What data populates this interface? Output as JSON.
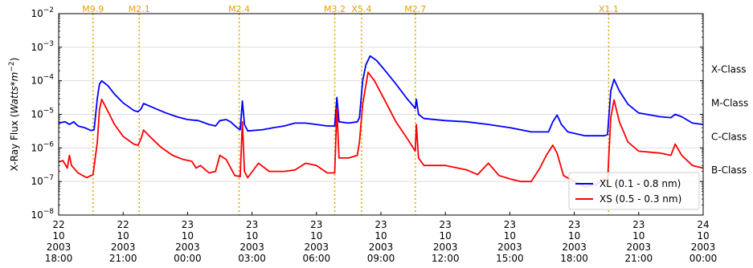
{
  "chart_data": {
    "type": "line",
    "ylabel": "X-Ray Flux (Watts*m^-2)",
    "yscale": "log",
    "ylim": [
      1e-08,
      0.01
    ],
    "y_ticks": [
      {
        "value": 1e-08,
        "mant": "10",
        "exp": "−8"
      },
      {
        "value": 1e-07,
        "mant": "10",
        "exp": "−7"
      },
      {
        "value": 1e-06,
        "mant": "10",
        "exp": "−6"
      },
      {
        "value": 1e-05,
        "mant": "10",
        "exp": "−5"
      },
      {
        "value": 0.0001,
        "mant": "10",
        "exp": "−4"
      },
      {
        "value": 0.001,
        "mant": "10",
        "exp": "−3"
      },
      {
        "value": 0.01,
        "mant": "10",
        "exp": "−2"
      }
    ],
    "xlim_hours": [
      0,
      30
    ],
    "x_ticks": [
      {
        "hours": 0,
        "lines": [
          "22",
          "10",
          "2003",
          "18:00"
        ]
      },
      {
        "hours": 3,
        "lines": [
          "22",
          "10",
          "2003",
          "21:00"
        ]
      },
      {
        "hours": 6,
        "lines": [
          "23",
          "10",
          "2003",
          "00:00"
        ]
      },
      {
        "hours": 9,
        "lines": [
          "23",
          "10",
          "2003",
          "03:00"
        ]
      },
      {
        "hours": 12,
        "lines": [
          "23",
          "10",
          "2003",
          "06:00"
        ]
      },
      {
        "hours": 15,
        "lines": [
          "23",
          "10",
          "2003",
          "09:00"
        ]
      },
      {
        "hours": 18,
        "lines": [
          "23",
          "10",
          "2003",
          "12:00"
        ]
      },
      {
        "hours": 21,
        "lines": [
          "23",
          "10",
          "2003",
          "15:00"
        ]
      },
      {
        "hours": 24,
        "lines": [
          "23",
          "10",
          "2003",
          "18:00"
        ]
      },
      {
        "hours": 27,
        "lines": [
          "23",
          "10",
          "2003",
          "21:00"
        ]
      },
      {
        "hours": 30,
        "lines": [
          "24",
          "10",
          "2003",
          "00:00"
        ]
      }
    ],
    "class_labels": [
      {
        "label": "X-Class",
        "value": 0.0001
      },
      {
        "label": "M-Class",
        "value": 1e-05
      },
      {
        "label": "C-Class",
        "value": 1e-06
      },
      {
        "label": "B-Class",
        "value": 1e-07
      }
    ],
    "flares": [
      {
        "label": "M9.9",
        "hours": 1.6
      },
      {
        "label": "M2.1",
        "hours": 3.75
      },
      {
        "label": "M2.4",
        "hours": 8.4
      },
      {
        "label": "M3.2",
        "hours": 12.85
      },
      {
        "label": "X5.4",
        "hours": 14.1
      },
      {
        "label": "M2.7",
        "hours": 16.6
      },
      {
        "label": "X1.1",
        "hours": 25.6
      }
    ],
    "legend": {
      "position": "lower-right"
    },
    "series": [
      {
        "name": "XL (0.1 - 0.8 nm)",
        "color": "#0000ff",
        "points": [
          [
            0,
            5.5e-06
          ],
          [
            0.3,
            6e-06
          ],
          [
            0.5,
            5e-06
          ],
          [
            0.7,
            6e-06
          ],
          [
            0.9,
            4.5e-06
          ],
          [
            1.2,
            4e-06
          ],
          [
            1.5,
            3.3e-06
          ],
          [
            1.65,
            3.5e-06
          ],
          [
            1.8,
            3e-05
          ],
          [
            1.9,
            8e-05
          ],
          [
            2.0,
            0.0001
          ],
          [
            2.3,
            7e-05
          ],
          [
            2.6,
            4e-05
          ],
          [
            3.0,
            2.2e-05
          ],
          [
            3.5,
            1.3e-05
          ],
          [
            3.7,
            1.2e-05
          ],
          [
            3.85,
            1.5e-05
          ],
          [
            3.95,
            2.1e-05
          ],
          [
            4.2,
            1.8e-05
          ],
          [
            4.6,
            1.4e-05
          ],
          [
            5.0,
            1.1e-05
          ],
          [
            5.5,
            8.5e-06
          ],
          [
            6.0,
            7e-06
          ],
          [
            6.5,
            6.5e-06
          ],
          [
            7.0,
            5e-06
          ],
          [
            7.3,
            4.5e-06
          ],
          [
            7.5,
            6.5e-06
          ],
          [
            7.8,
            7e-06
          ],
          [
            8.0,
            6e-06
          ],
          [
            8.3,
            4e-06
          ],
          [
            8.45,
            3.5e-06
          ],
          [
            8.55,
            2.5e-05
          ],
          [
            8.65,
            5e-06
          ],
          [
            8.8,
            3.2e-06
          ],
          [
            9.5,
            3.5e-06
          ],
          [
            10,
            4e-06
          ],
          [
            10.5,
            4.5e-06
          ],
          [
            11,
            5.5e-06
          ],
          [
            11.5,
            5.5e-06
          ],
          [
            12.0,
            5e-06
          ],
          [
            12.5,
            4.5e-06
          ],
          [
            12.85,
            4.5e-06
          ],
          [
            12.95,
            3.2e-05
          ],
          [
            13.05,
            6e-06
          ],
          [
            13.5,
            5.5e-06
          ],
          [
            13.9,
            6e-06
          ],
          [
            14.0,
            8e-06
          ],
          [
            14.15,
            0.0001
          ],
          [
            14.3,
            0.0003
          ],
          [
            14.5,
            0.00055
          ],
          [
            14.8,
            0.0004
          ],
          [
            15.2,
            0.0002
          ],
          [
            15.7,
            8e-05
          ],
          [
            16.2,
            3e-05
          ],
          [
            16.6,
            1.5e-05
          ],
          [
            16.65,
            2.8e-05
          ],
          [
            16.75,
            1e-05
          ],
          [
            17,
            7.5e-06
          ],
          [
            18,
            6.5e-06
          ],
          [
            19,
            6e-06
          ],
          [
            20,
            5e-06
          ],
          [
            21,
            4e-06
          ],
          [
            22,
            3e-06
          ],
          [
            22.8,
            3e-06
          ],
          [
            23.0,
            6e-06
          ],
          [
            23.2,
            9.5e-06
          ],
          [
            23.4,
            5e-06
          ],
          [
            23.7,
            3e-06
          ],
          [
            24.5,
            2.3e-06
          ],
          [
            25.4,
            2.3e-06
          ],
          [
            25.55,
            2.5e-06
          ],
          [
            25.7,
            5e-05
          ],
          [
            25.85,
            0.00011
          ],
          [
            26.1,
            5e-05
          ],
          [
            26.5,
            2e-05
          ],
          [
            27,
            1.1e-05
          ],
          [
            28,
            8.5e-06
          ],
          [
            28.5,
            8e-06
          ],
          [
            28.7,
            1e-05
          ],
          [
            29,
            8.5e-06
          ],
          [
            29.5,
            5.5e-06
          ],
          [
            30,
            5e-06
          ]
        ]
      },
      {
        "name": "XS (0.5 - 0.3 nm)",
        "color": "#ff0000",
        "points": [
          [
            0,
            3.8e-07
          ],
          [
            0.2,
            4.2e-07
          ],
          [
            0.4,
            2.5e-07
          ],
          [
            0.5,
            6e-07
          ],
          [
            0.6,
            3e-07
          ],
          [
            0.9,
            1.8e-07
          ],
          [
            1.3,
            1.3e-07
          ],
          [
            1.6,
            1.6e-07
          ],
          [
            1.8,
            1.5e-06
          ],
          [
            1.9,
            1.4e-05
          ],
          [
            2.0,
            2.8e-05
          ],
          [
            2.3,
            1.2e-05
          ],
          [
            2.6,
            5e-06
          ],
          [
            3.0,
            2.2e-06
          ],
          [
            3.5,
            1.3e-06
          ],
          [
            3.7,
            1.2e-06
          ],
          [
            3.85,
            2e-06
          ],
          [
            3.95,
            3.4e-06
          ],
          [
            4.3,
            2e-06
          ],
          [
            4.8,
            1e-06
          ],
          [
            5.3,
            6e-07
          ],
          [
            5.8,
            4.5e-07
          ],
          [
            6.2,
            4e-07
          ],
          [
            6.4,
            2.5e-07
          ],
          [
            6.6,
            3e-07
          ],
          [
            7.0,
            1.8e-07
          ],
          [
            7.3,
            2e-07
          ],
          [
            7.5,
            6e-07
          ],
          [
            7.8,
            4.5e-07
          ],
          [
            8.2,
            1.5e-07
          ],
          [
            8.45,
            1.4e-07
          ],
          [
            8.55,
            6e-06
          ],
          [
            8.65,
            2e-07
          ],
          [
            8.8,
            1.3e-07
          ],
          [
            9.3,
            3.5e-07
          ],
          [
            9.8,
            2e-07
          ],
          [
            10.5,
            2e-07
          ],
          [
            11,
            2.2e-07
          ],
          [
            11.5,
            3.5e-07
          ],
          [
            12.0,
            3e-07
          ],
          [
            12.5,
            1.8e-07
          ],
          [
            12.85,
            1.8e-07
          ],
          [
            12.95,
            1.5e-05
          ],
          [
            13.05,
            5e-07
          ],
          [
            13.5,
            5e-07
          ],
          [
            13.9,
            6e-07
          ],
          [
            14.0,
            1.5e-06
          ],
          [
            14.15,
            2e-05
          ],
          [
            14.4,
            0.00018
          ],
          [
            14.7,
            0.0001
          ],
          [
            15.2,
            2.5e-05
          ],
          [
            15.7,
            6e-06
          ],
          [
            16.2,
            2e-06
          ],
          [
            16.6,
            8e-07
          ],
          [
            16.65,
            5e-06
          ],
          [
            16.75,
            5e-07
          ],
          [
            17.0,
            3e-07
          ],
          [
            18,
            3e-07
          ],
          [
            19,
            2.2e-07
          ],
          [
            19.5,
            1.6e-07
          ],
          [
            20,
            3.5e-07
          ],
          [
            20.5,
            1.5e-07
          ],
          [
            21,
            1.2e-07
          ],
          [
            21.5,
            1e-07
          ],
          [
            22.0,
            1e-07
          ],
          [
            22.4,
            2.5e-07
          ],
          [
            22.7,
            6e-07
          ],
          [
            23.0,
            1.2e-06
          ],
          [
            23.2,
            7e-07
          ],
          [
            23.5,
            1.5e-07
          ],
          [
            24,
            1e-07
          ],
          [
            24.5,
            7e-08
          ],
          [
            25,
            8e-08
          ],
          [
            25.4,
            1.2e-07
          ],
          [
            25.55,
            1e-07
          ],
          [
            25.7,
            8e-06
          ],
          [
            25.85,
            2.7e-05
          ],
          [
            26.1,
            6e-06
          ],
          [
            26.5,
            1.5e-06
          ],
          [
            27,
            8e-07
          ],
          [
            28,
            7e-07
          ],
          [
            28.5,
            6e-07
          ],
          [
            28.7,
            1.3e-06
          ],
          [
            29,
            6e-07
          ],
          [
            29.5,
            3e-07
          ],
          [
            30,
            2.5e-07
          ]
        ]
      }
    ]
  }
}
